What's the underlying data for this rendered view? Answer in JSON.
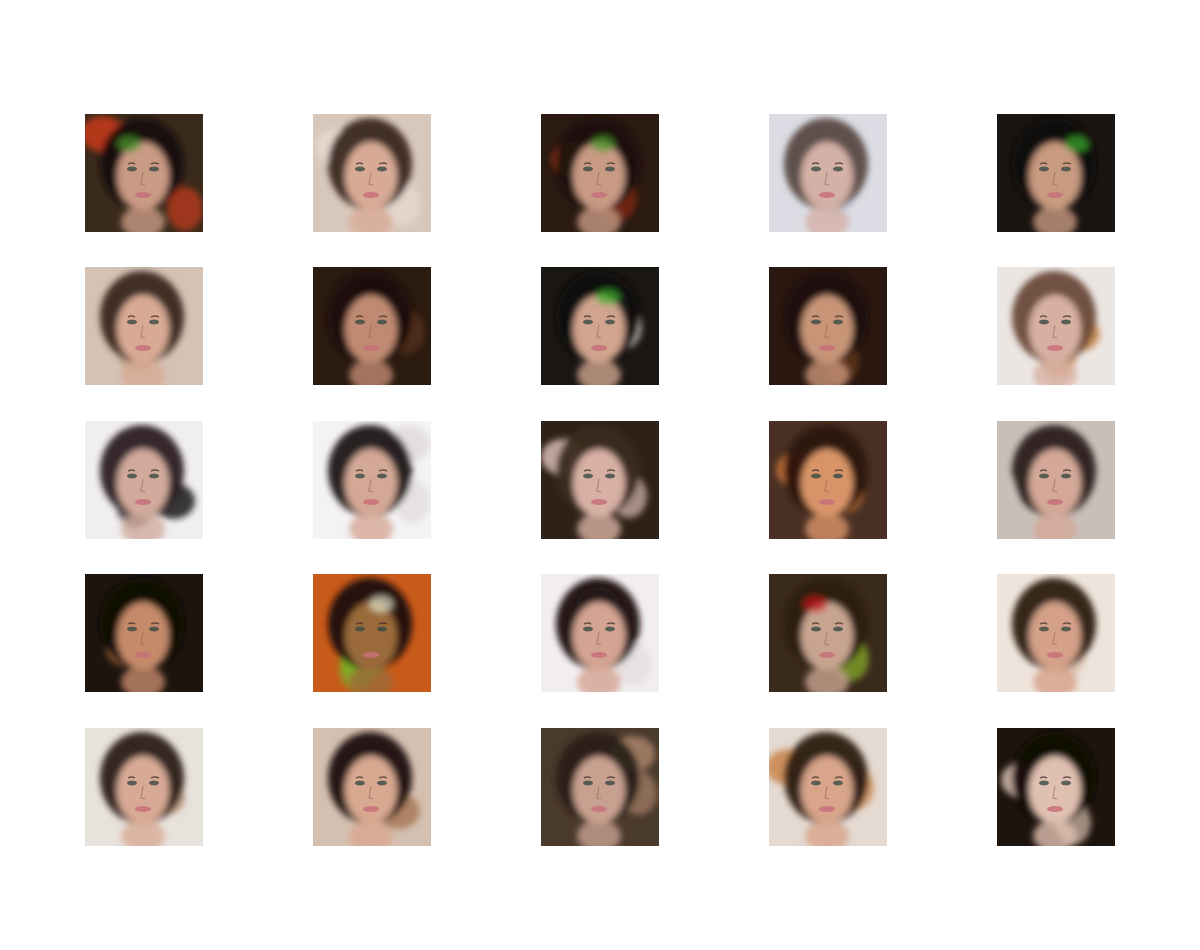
{
  "figure": {
    "rows": 5,
    "cols": 5,
    "samples": [
      {
        "bg": "#3a2a1c",
        "accent": "#c83a1a",
        "hair": "#14100c",
        "skin": "#c99a84",
        "tint": "#4a9a2a"
      },
      {
        "bg": "#d8c8bc",
        "accent": "#e8dcd2",
        "hair": "#3a281e",
        "skin": "#d8aa96",
        "tint": ""
      },
      {
        "bg": "#2a1a12",
        "accent": "#8a2a14",
        "hair": "#1a120c",
        "skin": "#c89a84",
        "tint": "#4a9a2a"
      },
      {
        "bg": "#dcdde4",
        "accent": "#bcc6d8",
        "hair": "#5a4a44",
        "skin": "#d4b0a6",
        "tint": ""
      },
      {
        "bg": "#1a1410",
        "accent": "#3a2418",
        "hair": "#120c08",
        "skin": "#c89a80",
        "tint": "#3ab02a"
      },
      {
        "bg": "#d4c2b4",
        "accent": "#b89a84",
        "hair": "#3a281a",
        "skin": "#d8aa94",
        "tint": ""
      },
      {
        "bg": "#2a1a10",
        "accent": "#5a3418",
        "hair": "#1a100a",
        "skin": "#c08a72",
        "tint": ""
      },
      {
        "bg": "#1a1612",
        "accent": "#e8e2dc",
        "hair": "#0e0a08",
        "skin": "#d0a48e",
        "tint": "#3ab02a"
      },
      {
        "bg": "#2a1810",
        "accent": "#6a3a1c",
        "hair": "#1a0e08",
        "skin": "#c89478",
        "tint": ""
      },
      {
        "bg": "#ece6e2",
        "accent": "#c8864a",
        "hair": "#6a4a38",
        "skin": "#d8b0a2",
        "tint": ""
      },
      {
        "bg": "#f0eef0",
        "accent": "#1a1418",
        "hair": "#2a2024",
        "skin": "#d2aa9c",
        "tint": ""
      },
      {
        "bg": "#f4f2f4",
        "accent": "#e0dcdc",
        "hair": "#1e1416",
        "skin": "#d4a896",
        "tint": ""
      },
      {
        "bg": "#2e2218",
        "accent": "#d8bcb4",
        "hair": "#3a2a1e",
        "skin": "#d8b0a4",
        "tint": ""
      },
      {
        "bg": "#4a3024",
        "accent": "#c8743a",
        "hair": "#2a1408",
        "skin": "#d89468",
        "tint": ""
      },
      {
        "bg": "#c8c0b8",
        "accent": "#e2d8d2",
        "hair": "#2a1e1a",
        "skin": "#d4a898",
        "tint": ""
      },
      {
        "bg": "#1e140e",
        "accent": "#a86a3a",
        "hair": "#120a06",
        "skin": "#c48a6a",
        "tint": ""
      },
      {
        "bg": "#c85a1a",
        "accent": "#7ab02a",
        "hair": "#1a1208",
        "skin": "#9a6a3a",
        "tint": "#e8e8d0"
      },
      {
        "bg": "#f2eef0",
        "accent": "#e4dcdc",
        "hair": "#1a1010",
        "skin": "#d4a492",
        "tint": ""
      },
      {
        "bg": "#3a2a1c",
        "accent": "#8ab02a",
        "hair": "#2a1a10",
        "skin": "#c8a490",
        "tint": "#c81a1a"
      },
      {
        "bg": "#eee4dc",
        "accent": "#d8b8a4",
        "hair": "#2a1a12",
        "skin": "#d4a088",
        "tint": ""
      },
      {
        "bg": "#e8e2dc",
        "accent": "#b4927a",
        "hair": "#2a1c14",
        "skin": "#d8aa96",
        "tint": ""
      },
      {
        "bg": "#d4c0b0",
        "accent": "#a87a5a",
        "hair": "#1a120c",
        "skin": "#d8a890",
        "tint": ""
      },
      {
        "bg": "#4a3a2c",
        "accent": "#a8826a",
        "hair": "#2a2018",
        "skin": "#c8a090",
        "tint": ""
      },
      {
        "bg": "#e4dad2",
        "accent": "#c8844a",
        "hair": "#2a1a12",
        "skin": "#d8a48a",
        "tint": ""
      },
      {
        "bg": "#1e140e",
        "accent": "#d8c0b0",
        "hair": "#120a06",
        "skin": "#e0c0b0",
        "tint": ""
      }
    ]
  }
}
